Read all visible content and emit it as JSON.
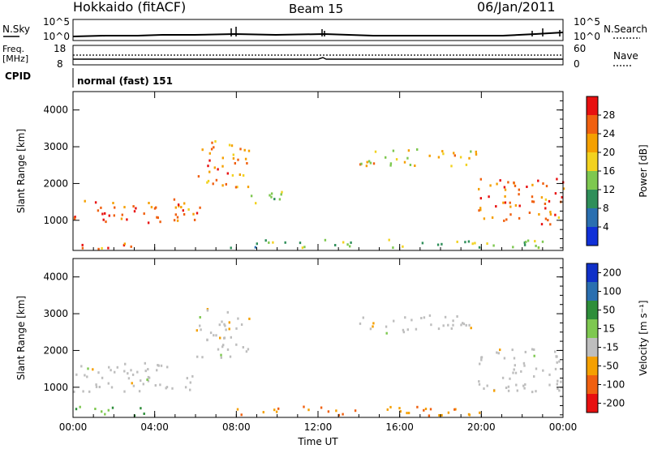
{
  "header": {
    "station": "Hokkaido (fitACF)",
    "beam": "Beam 15",
    "date": "06/Jan/2011"
  },
  "status_panels": {
    "nsky_label": "N.Sky",
    "nsearch_label": "N.Search",
    "noise_ticks": [
      "10^5",
      "10^0"
    ],
    "freq_label_1": "Freq.",
    "freq_label_2": "[MHz]",
    "freq_ticks": [
      "18",
      "8"
    ],
    "nave_label": "Nave",
    "nave_ticks": [
      "60",
      "0"
    ],
    "cpid_label": "CPID",
    "cpid_value": "normal (fast) 151"
  },
  "chart_data": [
    {
      "type": "heatmap",
      "name": "power",
      "ylabel": "Slant Range [km]",
      "xlabel": "",
      "x_ticks": [
        "00:00",
        "04:00",
        "08:00",
        "12:00",
        "16:00",
        "20:00",
        "00:00"
      ],
      "y_ticks": [
        1000,
        2000,
        3000,
        4000
      ],
      "ylim": [
        180,
        4500
      ],
      "xlim_hours": [
        0,
        24
      ],
      "colorbar_label": "Power [dB]",
      "colorbar_ticks": [
        4,
        8,
        12,
        16,
        20,
        24,
        28
      ],
      "colors": [
        "#1030d8",
        "#2a6fb0",
        "#2f8f5a",
        "#7ec850",
        "#f2d21f",
        "#f5a000",
        "#f06010",
        "#e81010"
      ],
      "regions": [
        {
          "t": [
            0.0,
            6.2
          ],
          "r": [
            900,
            1600
          ],
          "level": 0.85
        },
        {
          "t": [
            0.0,
            3.5
          ],
          "r": [
            250,
            450
          ],
          "level": 0.8
        },
        {
          "t": [
            6.0,
            8.6
          ],
          "r": [
            1900,
            3200
          ],
          "level": 0.75
        },
        {
          "t": [
            8.5,
            10.2
          ],
          "r": [
            1400,
            1900
          ],
          "level": 0.45
        },
        {
          "t": [
            14.0,
            19.8
          ],
          "r": [
            2500,
            3000
          ],
          "level": 0.6
        },
        {
          "t": [
            19.8,
            24.0
          ],
          "r": [
            900,
            2200
          ],
          "level": 0.85
        },
        {
          "t": [
            7.5,
            24.0
          ],
          "r": [
            280,
            500
          ],
          "level": 0.35
        }
      ]
    },
    {
      "type": "heatmap",
      "name": "velocity",
      "ylabel": "Slant Range [km]",
      "xlabel": "Time UT",
      "x_ticks": [
        "00:00",
        "04:00",
        "08:00",
        "12:00",
        "16:00",
        "20:00",
        "00:00"
      ],
      "y_ticks": [
        1000,
        2000,
        3000,
        4000
      ],
      "ylim": [
        180,
        4500
      ],
      "xlim_hours": [
        0,
        24
      ],
      "colorbar_label": "Velocity [m s⁻¹]",
      "colorbar_ticks": [
        "200",
        "100",
        "50",
        "15",
        "-15",
        "-50",
        "-100",
        "-200"
      ],
      "colors": [
        "#1030c8",
        "#2a6fb0",
        "#2e8e3a",
        "#7ec850",
        "#bebebe",
        "#f5a000",
        "#f06010",
        "#e81010"
      ],
      "regions": [
        {
          "t": [
            0.0,
            6.2
          ],
          "r": [
            900,
            1700
          ],
          "level": "ground"
        },
        {
          "t": [
            6.0,
            8.6
          ],
          "r": [
            1800,
            3200
          ],
          "level": "ground"
        },
        {
          "t": [
            14.0,
            19.8
          ],
          "r": [
            2500,
            3000
          ],
          "level": "ground"
        },
        {
          "t": [
            19.8,
            24.0
          ],
          "r": [
            900,
            2100
          ],
          "level": "ground"
        },
        {
          "t": [
            0.0,
            3.5
          ],
          "r": [
            250,
            500
          ],
          "level": "positive"
        },
        {
          "t": [
            8.0,
            20.0
          ],
          "r": [
            250,
            500
          ],
          "level": "negative"
        }
      ]
    }
  ]
}
